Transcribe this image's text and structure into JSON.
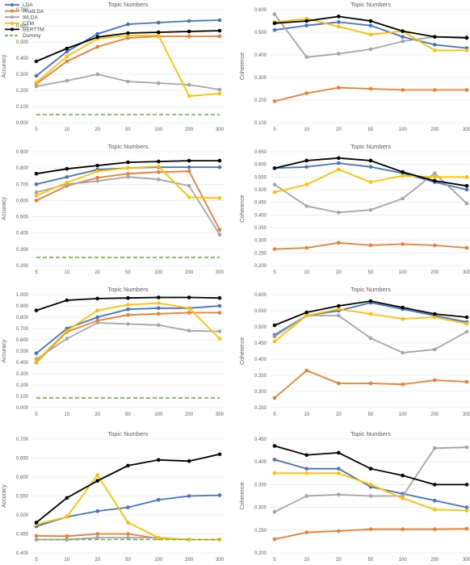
{
  "legend": [
    {
      "name": "LDA",
      "color": "#4472c4"
    },
    {
      "name": "ProdLDA",
      "color": "#ed7d31"
    },
    {
      "name": "WLDA",
      "color": "#a5a5a5"
    },
    {
      "name": "CTM",
      "color": "#ffc000"
    },
    {
      "name": "BERTTM",
      "color": "#000000"
    },
    {
      "name": "Dummy",
      "color": "#70ad47",
      "dashed": true
    }
  ],
  "chart_data": [
    {
      "type": "line",
      "title": "Topic Numbers",
      "xlabel": "",
      "ylabel": "Accuracy",
      "categories": [
        "5",
        "10",
        "20",
        "50",
        "100",
        "200",
        "300"
      ],
      "ylim": [
        0,
        0.7
      ],
      "yticks": [
        "0.000",
        "0.100",
        "0.200",
        "0.300",
        "0.400",
        "0.500",
        "0.600",
        "0.700"
      ],
      "series": [
        {
          "name": "LDA",
          "color": "#4472c4",
          "values": [
            0.29,
            0.44,
            0.55,
            0.61,
            0.62,
            0.63,
            0.635
          ]
        },
        {
          "name": "ProdLDA",
          "color": "#ed7d31",
          "values": [
            0.24,
            0.38,
            0.47,
            0.525,
            0.535,
            0.535,
            0.535
          ]
        },
        {
          "name": "WLDA",
          "color": "#a5a5a5",
          "values": [
            0.225,
            0.26,
            0.3,
            0.255,
            0.245,
            0.235,
            0.205
          ]
        },
        {
          "name": "CTM",
          "color": "#ffc000",
          "values": [
            0.25,
            0.41,
            0.52,
            0.54,
            0.54,
            0.165,
            0.18
          ]
        },
        {
          "name": "BERTTM",
          "color": "#000000",
          "values": [
            0.38,
            0.46,
            0.53,
            0.555,
            0.56,
            0.565,
            0.57
          ]
        },
        {
          "name": "Dummy",
          "color": "#70ad47",
          "dashed": true,
          "values": [
            0.05,
            0.05,
            0.05,
            0.05,
            0.05,
            0.05,
            0.05
          ]
        }
      ]
    },
    {
      "type": "line",
      "title": "Topic Numbers",
      "xlabel": "",
      "ylabel": "Coherence",
      "categories": [
        "5",
        "10",
        "20",
        "50",
        "100",
        "200",
        "300"
      ],
      "ylim": [
        0.1,
        0.6
      ],
      "yticks": [
        "0.100",
        "0.200",
        "0.300",
        "0.400",
        "0.500",
        "0.600"
      ],
      "series": [
        {
          "name": "LDA",
          "color": "#4472c4",
          "values": [
            0.51,
            0.53,
            0.545,
            0.53,
            0.48,
            0.445,
            0.43
          ]
        },
        {
          "name": "ProdLDA",
          "color": "#ed7d31",
          "values": [
            0.195,
            0.23,
            0.255,
            0.25,
            0.245,
            0.245,
            0.245
          ]
        },
        {
          "name": "WLDA",
          "color": "#a5a5a5",
          "values": [
            0.58,
            0.39,
            0.405,
            0.425,
            0.46,
            0.48,
            0.48
          ]
        },
        {
          "name": "CTM",
          "color": "#ffc000",
          "values": [
            0.545,
            0.56,
            0.525,
            0.49,
            0.505,
            0.42,
            0.42
          ]
        },
        {
          "name": "BERTTM",
          "color": "#000000",
          "values": [
            0.54,
            0.55,
            0.57,
            0.55,
            0.505,
            0.48,
            0.475
          ]
        }
      ]
    },
    {
      "type": "line",
      "title": "Topic Numbers",
      "xlabel": "",
      "ylabel": "Accuracy",
      "categories": [
        "5",
        "10",
        "20",
        "50",
        "100",
        "200",
        "300"
      ],
      "ylim": [
        0.2,
        0.9
      ],
      "yticks": [
        "0.200",
        "0.300",
        "0.400",
        "0.500",
        "0.600",
        "0.700",
        "0.800",
        "0.900"
      ],
      "series": [
        {
          "name": "LDA",
          "color": "#4472c4",
          "values": [
            0.7,
            0.745,
            0.79,
            0.8,
            0.805,
            0.805,
            0.805
          ]
        },
        {
          "name": "ProdLDA",
          "color": "#ed7d31",
          "values": [
            0.6,
            0.69,
            0.74,
            0.765,
            0.775,
            0.78,
            0.42
          ]
        },
        {
          "name": "WLDA",
          "color": "#a5a5a5",
          "values": [
            0.65,
            0.7,
            0.72,
            0.745,
            0.73,
            0.69,
            0.39
          ]
        },
        {
          "name": "CTM",
          "color": "#ffc000",
          "values": [
            0.63,
            0.71,
            0.78,
            0.8,
            0.81,
            0.62,
            0.615
          ]
        },
        {
          "name": "BERTTM",
          "color": "#000000",
          "values": [
            0.765,
            0.795,
            0.815,
            0.835,
            0.84,
            0.845,
            0.845
          ]
        },
        {
          "name": "Dummy",
          "color": "#70ad47",
          "dashed": true,
          "values": [
            0.25,
            0.25,
            0.25,
            0.25,
            0.25,
            0.25,
            0.25
          ]
        }
      ]
    },
    {
      "type": "line",
      "title": "Topic Numbers",
      "xlabel": "",
      "ylabel": "Coherence",
      "categories": [
        "5",
        "10",
        "20",
        "50",
        "100",
        "200",
        "300"
      ],
      "ylim": [
        0.2,
        0.65
      ],
      "yticks": [
        "0.200",
        "0.250",
        "0.300",
        "0.350",
        "0.400",
        "0.450",
        "0.500",
        "0.550",
        "0.600",
        "0.650"
      ],
      "series": [
        {
          "name": "LDA",
          "color": "#4472c4",
          "values": [
            0.585,
            0.59,
            0.605,
            0.59,
            0.565,
            0.53,
            0.5
          ]
        },
        {
          "name": "ProdLDA",
          "color": "#ed7d31",
          "values": [
            0.265,
            0.27,
            0.29,
            0.28,
            0.285,
            0.28,
            0.27
          ]
        },
        {
          "name": "WLDA",
          "color": "#a5a5a5",
          "values": [
            0.52,
            0.435,
            0.41,
            0.42,
            0.465,
            0.565,
            0.445
          ]
        },
        {
          "name": "CTM",
          "color": "#ffc000",
          "values": [
            0.49,
            0.52,
            0.58,
            0.53,
            0.555,
            0.55,
            0.55
          ]
        },
        {
          "name": "BERTTM",
          "color": "#000000",
          "values": [
            0.585,
            0.615,
            0.625,
            0.615,
            0.57,
            0.535,
            0.515
          ]
        }
      ]
    },
    {
      "type": "line",
      "title": "Topic Numbers",
      "xlabel": "",
      "ylabel": "Accuracy",
      "categories": [
        "5",
        "10",
        "20",
        "50",
        "100",
        "200",
        "300"
      ],
      "ylim": [
        0,
        1.0
      ],
      "yticks": [
        "0.000",
        "0.100",
        "0.200",
        "0.300",
        "0.400",
        "0.500",
        "0.600",
        "0.700",
        "0.800",
        "0.900",
        "1.000"
      ],
      "series": [
        {
          "name": "LDA",
          "color": "#4472c4",
          "values": [
            0.48,
            0.7,
            0.8,
            0.87,
            0.88,
            0.88,
            0.9
          ]
        },
        {
          "name": "ProdLDA",
          "color": "#ed7d31",
          "values": [
            0.4,
            0.67,
            0.77,
            0.82,
            0.83,
            0.84,
            0.84
          ]
        },
        {
          "name": "WLDA",
          "color": "#a5a5a5",
          "values": [
            0.43,
            0.61,
            0.75,
            0.74,
            0.73,
            0.68,
            0.675
          ]
        },
        {
          "name": "CTM",
          "color": "#ffc000",
          "values": [
            0.41,
            0.68,
            0.86,
            0.91,
            0.925,
            0.88,
            0.61
          ]
        },
        {
          "name": "BERTTM",
          "color": "#000000",
          "values": [
            0.86,
            0.95,
            0.965,
            0.97,
            0.975,
            0.975,
            0.97
          ]
        },
        {
          "name": "Dummy",
          "color": "#70ad47",
          "dashed": true,
          "values": [
            0.085,
            0.085,
            0.085,
            0.085,
            0.085,
            0.085,
            0.085
          ]
        }
      ]
    },
    {
      "type": "line",
      "title": "Topic Numbers",
      "xlabel": "",
      "ylabel": "Coherence",
      "categories": [
        "5",
        "10",
        "20",
        "50",
        "100",
        "200",
        "300"
      ],
      "ylim": [
        0.25,
        0.6
      ],
      "yticks": [
        "0.250",
        "0.300",
        "0.350",
        "0.400",
        "0.450",
        "0.500",
        "0.550",
        "0.600"
      ],
      "series": [
        {
          "name": "LDA",
          "color": "#4472c4",
          "values": [
            0.475,
            0.535,
            0.55,
            0.575,
            0.555,
            0.535,
            0.515
          ]
        },
        {
          "name": "ProdLDA",
          "color": "#ed7d31",
          "values": [
            0.28,
            0.365,
            0.325,
            0.325,
            0.322,
            0.335,
            0.33
          ]
        },
        {
          "name": "WLDA",
          "color": "#a5a5a5",
          "values": [
            0.47,
            0.535,
            0.535,
            0.465,
            0.42,
            0.43,
            0.485
          ]
        },
        {
          "name": "CTM",
          "color": "#ffc000",
          "values": [
            0.455,
            0.535,
            0.555,
            0.54,
            0.525,
            0.53,
            0.51
          ]
        },
        {
          "name": "BERTTM",
          "color": "#000000",
          "values": [
            0.505,
            0.545,
            0.565,
            0.58,
            0.56,
            0.54,
            0.53
          ]
        }
      ]
    },
    {
      "type": "line",
      "title": "Topic Numbers",
      "xlabel": "",
      "ylabel": "Accuracy",
      "categories": [
        "5",
        "10",
        "20",
        "50",
        "100",
        "200",
        "300"
      ],
      "ylim": [
        0.4,
        0.7
      ],
      "yticks": [
        "0.400",
        "0.450",
        "0.500",
        "0.550",
        "0.600",
        "0.650",
        "0.700"
      ],
      "series": [
        {
          "name": "LDA",
          "color": "#4472c4",
          "values": [
            0.47,
            0.495,
            0.51,
            0.52,
            0.54,
            0.55,
            0.552
          ]
        },
        {
          "name": "ProdLDA",
          "color": "#ed7d31",
          "values": [
            0.445,
            0.444,
            0.45,
            0.45,
            0.438,
            0.435,
            0.435
          ]
        },
        {
          "name": "WLDA",
          "color": "#a5a5a5",
          "values": [
            0.435,
            0.435,
            0.44,
            0.44,
            0.44,
            0.435,
            0.435
          ]
        },
        {
          "name": "CTM",
          "color": "#ffc000",
          "values": [
            0.475,
            0.495,
            0.605,
            0.48,
            0.44,
            0.435,
            0.435
          ]
        },
        {
          "name": "BERTTM",
          "color": "#000000",
          "values": [
            0.48,
            0.545,
            0.59,
            0.63,
            0.645,
            0.642,
            0.66
          ]
        },
        {
          "name": "Dummy",
          "color": "#70ad47",
          "dashed": true,
          "values": [
            0.435,
            0.435,
            0.435,
            0.435,
            0.435,
            0.435,
            0.435
          ]
        }
      ]
    },
    {
      "type": "line",
      "title": "Topic Numbers",
      "xlabel": "",
      "ylabel": "Coherence",
      "categories": [
        "5",
        "10",
        "20",
        "50",
        "100",
        "200",
        "300"
      ],
      "ylim": [
        0.2,
        0.45
      ],
      "yticks": [
        "0.200",
        "0.250",
        "0.300",
        "0.350",
        "0.400",
        "0.450"
      ],
      "series": [
        {
          "name": "LDA",
          "color": "#4472c4",
          "values": [
            0.405,
            0.385,
            0.385,
            0.345,
            0.33,
            0.315,
            0.3
          ]
        },
        {
          "name": "ProdLDA",
          "color": "#ed7d31",
          "values": [
            0.23,
            0.245,
            0.248,
            0.252,
            0.252,
            0.252,
            0.253
          ]
        },
        {
          "name": "WLDA",
          "color": "#a5a5a5",
          "values": [
            0.29,
            0.325,
            0.328,
            0.325,
            0.325,
            0.43,
            0.432
          ]
        },
        {
          "name": "CTM",
          "color": "#ffc000",
          "values": [
            0.375,
            0.375,
            0.375,
            0.35,
            0.32,
            0.295,
            0.293
          ]
        },
        {
          "name": "BERTTM",
          "color": "#000000",
          "values": [
            0.435,
            0.415,
            0.42,
            0.385,
            0.37,
            0.35,
            0.35
          ]
        }
      ]
    }
  ]
}
